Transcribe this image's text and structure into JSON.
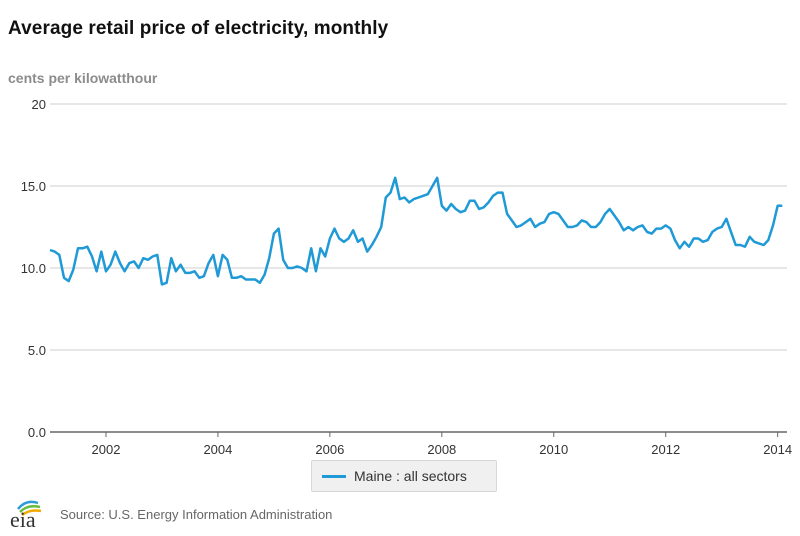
{
  "title": "Average retail price of electricity, monthly",
  "source": "Source: U.S. Energy Information Administration",
  "logo_text": "eia",
  "colors": {
    "series": "#1f9ad6",
    "grid": "#cfcfcf",
    "axis": "#666666"
  },
  "chart_data": {
    "type": "line",
    "title": "Average retail price of electricity, monthly",
    "ylabel": "cents per kilowatthour",
    "xlabel": "",
    "ylim": [
      0,
      20
    ],
    "xlim": [
      2001.0,
      2014.1667
    ],
    "yticks": [
      {
        "value": 0,
        "label": "0.0"
      },
      {
        "value": 5,
        "label": "5.0"
      },
      {
        "value": 10,
        "label": "10.0"
      },
      {
        "value": 15,
        "label": "15.0"
      },
      {
        "value": 20,
        "label": "20"
      }
    ],
    "xticks": [
      {
        "value": 2002,
        "label": "2002"
      },
      {
        "value": 2004,
        "label": "2004"
      },
      {
        "value": 2006,
        "label": "2006"
      },
      {
        "value": 2008,
        "label": "2008"
      },
      {
        "value": 2010,
        "label": "2010"
      },
      {
        "value": 2012,
        "label": "2012"
      },
      {
        "value": 2014,
        "label": "2014"
      }
    ],
    "legend": "bottom-center",
    "series": [
      {
        "name": "Maine : all sectors",
        "start": 2001.0,
        "step_months": 1,
        "values": [
          11.1,
          11.0,
          10.8,
          9.4,
          9.2,
          9.9,
          11.2,
          11.2,
          11.3,
          10.7,
          9.8,
          11.0,
          9.8,
          10.2,
          11.0,
          10.3,
          9.8,
          10.3,
          10.4,
          10.0,
          10.6,
          10.5,
          10.7,
          10.8,
          9.0,
          9.1,
          10.6,
          9.8,
          10.2,
          9.7,
          9.7,
          9.8,
          9.4,
          9.5,
          10.3,
          10.8,
          9.5,
          10.8,
          10.5,
          9.4,
          9.4,
          9.5,
          9.3,
          9.3,
          9.3,
          9.1,
          9.6,
          10.6,
          12.1,
          12.4,
          10.5,
          10.0,
          10.0,
          10.1,
          10.0,
          9.8,
          11.2,
          9.8,
          11.2,
          10.7,
          11.8,
          12.4,
          11.8,
          11.6,
          11.8,
          12.3,
          11.6,
          11.8,
          11.0,
          11.4,
          11.9,
          12.5,
          14.3,
          14.6,
          15.5,
          14.2,
          14.3,
          14.0,
          14.2,
          14.3,
          14.4,
          14.5,
          15.0,
          15.5,
          13.8,
          13.5,
          13.9,
          13.6,
          13.4,
          13.5,
          14.1,
          14.1,
          13.6,
          13.7,
          14.0,
          14.4,
          14.6,
          14.6,
          13.3,
          12.9,
          12.5,
          12.6,
          12.8,
          13.0,
          12.5,
          12.7,
          12.8,
          13.3,
          13.4,
          13.3,
          12.9,
          12.5,
          12.5,
          12.6,
          12.9,
          12.8,
          12.5,
          12.5,
          12.8,
          13.3,
          13.6,
          13.2,
          12.8,
          12.3,
          12.5,
          12.3,
          12.5,
          12.6,
          12.2,
          12.1,
          12.4,
          12.4,
          12.6,
          12.4,
          11.7,
          11.2,
          11.6,
          11.3,
          11.8,
          11.8,
          11.6,
          11.7,
          12.2,
          12.4,
          12.5,
          13.0,
          12.2,
          11.4,
          11.4,
          11.3,
          11.9,
          11.6,
          11.5,
          11.4,
          11.7,
          12.6,
          13.8,
          13.8
        ]
      }
    ]
  }
}
